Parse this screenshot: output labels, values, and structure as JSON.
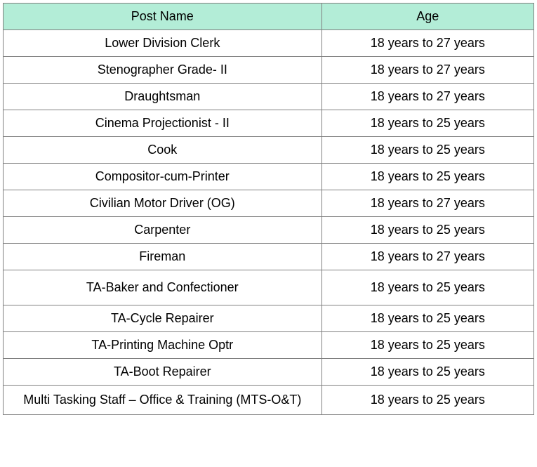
{
  "table": {
    "header_bg": "#b3edd7",
    "border_color": "#808080",
    "text_color": "#000000",
    "font_size": 18,
    "columns": [
      {
        "label": "Post Name",
        "width": "60%"
      },
      {
        "label": "Age",
        "width": "40%"
      }
    ],
    "rows": [
      {
        "post": "Lower Division Clerk",
        "age": "18 years to 27 years"
      },
      {
        "post": "Stenographer Grade- II",
        "age": "18 years to 27 years"
      },
      {
        "post": "Draughtsman",
        "age": "18 years to 27 years"
      },
      {
        "post": "Cinema Projectionist - II",
        "age": "18 years to 25 years"
      },
      {
        "post": "Cook",
        "age": "18 years to 25 years"
      },
      {
        "post": "Compositor-cum-Printer",
        "age": "18 years to 25 years"
      },
      {
        "post": "Civilian Motor Driver (OG)",
        "age": "18 years to 27 years"
      },
      {
        "post": "Carpenter",
        "age": "18 years to 25 years"
      },
      {
        "post": "Fireman",
        "age": "18 years to 27 years"
      },
      {
        "post": "TA-Baker and Confectioner",
        "age": "18 years to 25 years",
        "tall": true
      },
      {
        "post": "TA-Cycle Repairer",
        "age": "18 years to 25 years"
      },
      {
        "post": "TA-Printing Machine Optr",
        "age": "18 years to 25 years"
      },
      {
        "post": "TA-Boot Repairer",
        "age": "18 years to 25 years"
      },
      {
        "post": "Multi Tasking Staff – Office & Training (MTS-O&T)",
        "age": "18 years to 25 years",
        "multiline": true
      }
    ]
  }
}
